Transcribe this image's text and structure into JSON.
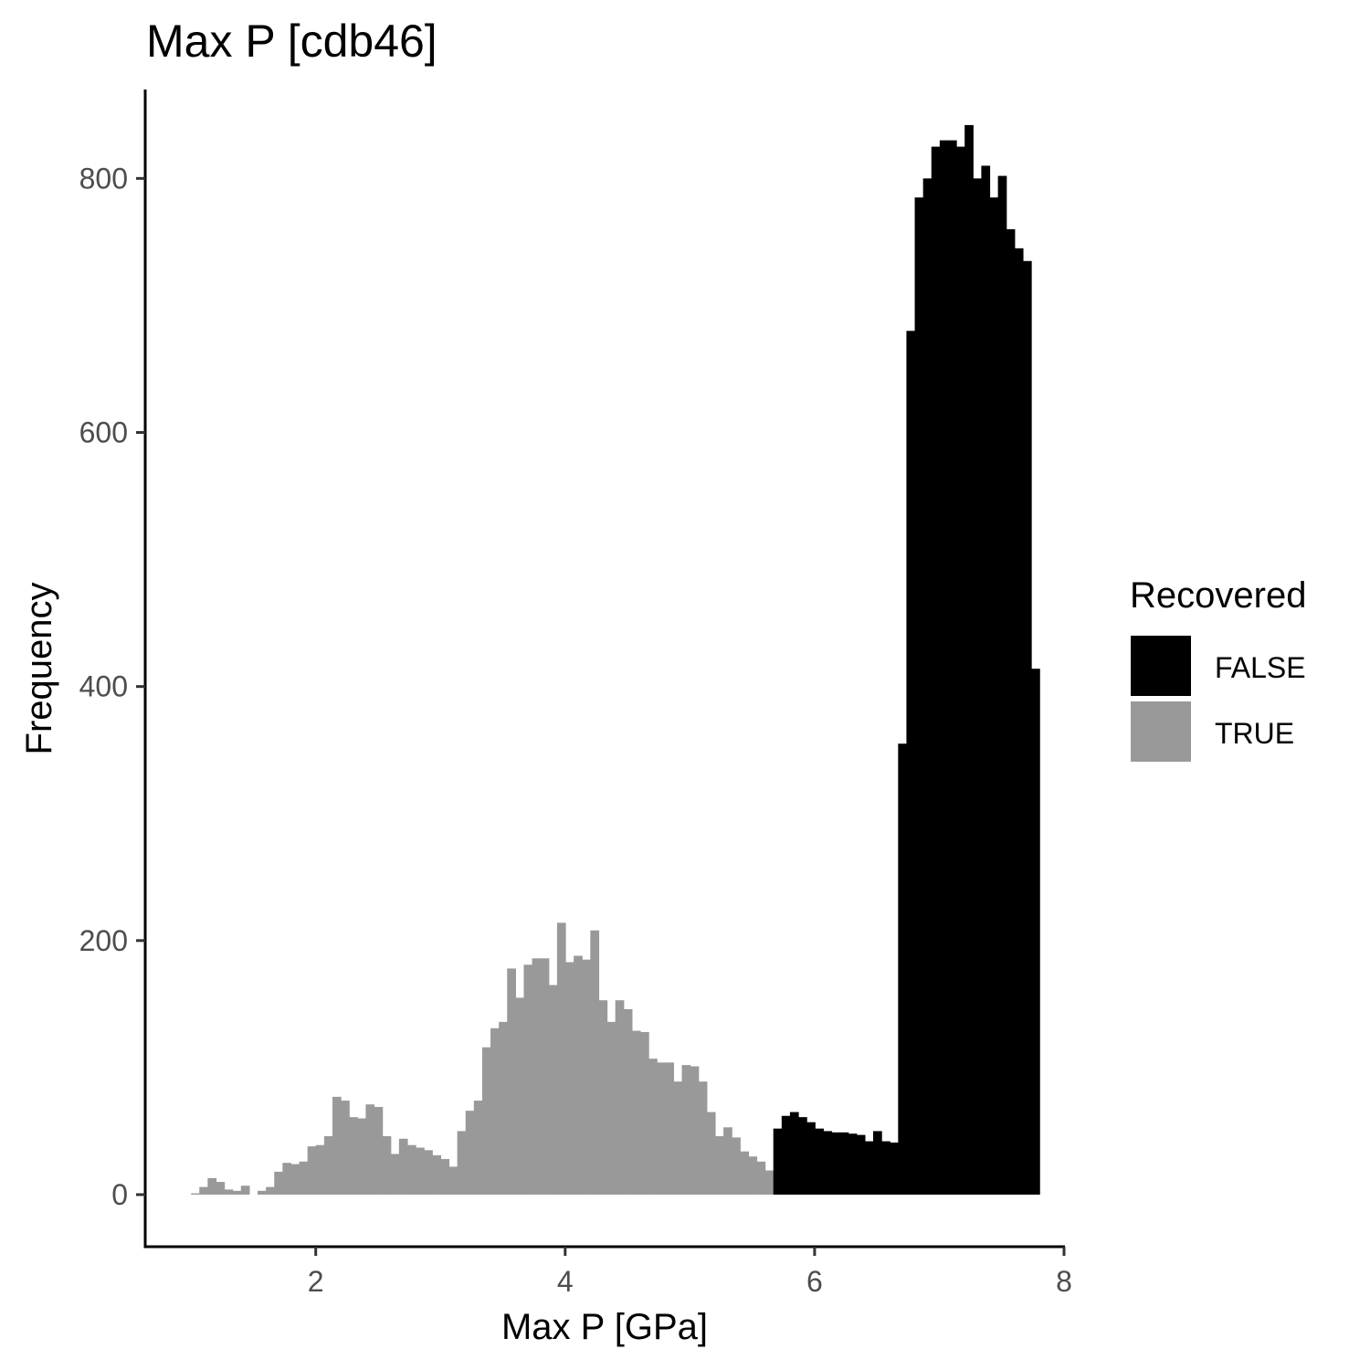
{
  "chart_data": {
    "type": "bar",
    "title": "Max P [cdb46]",
    "xlabel": "Max P [GPa]",
    "ylabel": "Frequency",
    "xlim": [
      0.64,
      8.0
    ],
    "ylim": [
      -41,
      870
    ],
    "x_ticks": [
      2,
      4,
      6,
      8
    ],
    "y_ticks": [
      0,
      200,
      400,
      600,
      800
    ],
    "grid": false,
    "legend_position": "right",
    "legend_title": "Recovered",
    "bin_start": 1.0,
    "bin_width": 0.0667,
    "series": [
      {
        "name": "FALSE",
        "color": "#000000",
        "start_bin": 70,
        "values": [
          52,
          62,
          65,
          61,
          57,
          52,
          50,
          49,
          49,
          48,
          47,
          42,
          50,
          42,
          41,
          355,
          680,
          785,
          800,
          825,
          830,
          830,
          825,
          842,
          800,
          810,
          785,
          802,
          760,
          745,
          735,
          414
        ]
      },
      {
        "name": "TRUE",
        "color": "#999999",
        "start_bin": 0,
        "values": [
          1,
          6,
          13,
          10,
          4,
          3,
          7,
          0,
          3,
          6,
          18,
          25,
          24,
          26,
          38,
          39,
          46,
          77,
          74,
          61,
          60,
          71,
          69,
          46,
          32,
          44,
          39,
          37,
          35,
          31,
          28,
          22,
          50,
          66,
          74,
          116,
          131,
          136,
          178,
          155,
          181,
          186,
          186,
          165,
          214,
          183,
          188,
          185,
          208,
          153,
          136,
          153,
          146,
          129,
          128,
          107,
          104,
          104,
          89,
          102,
          101,
          89,
          65,
          46,
          53,
          45,
          34,
          30,
          26,
          19,
          17,
          10,
          6,
          8,
          2,
          4,
          1,
          1
        ]
      }
    ]
  }
}
